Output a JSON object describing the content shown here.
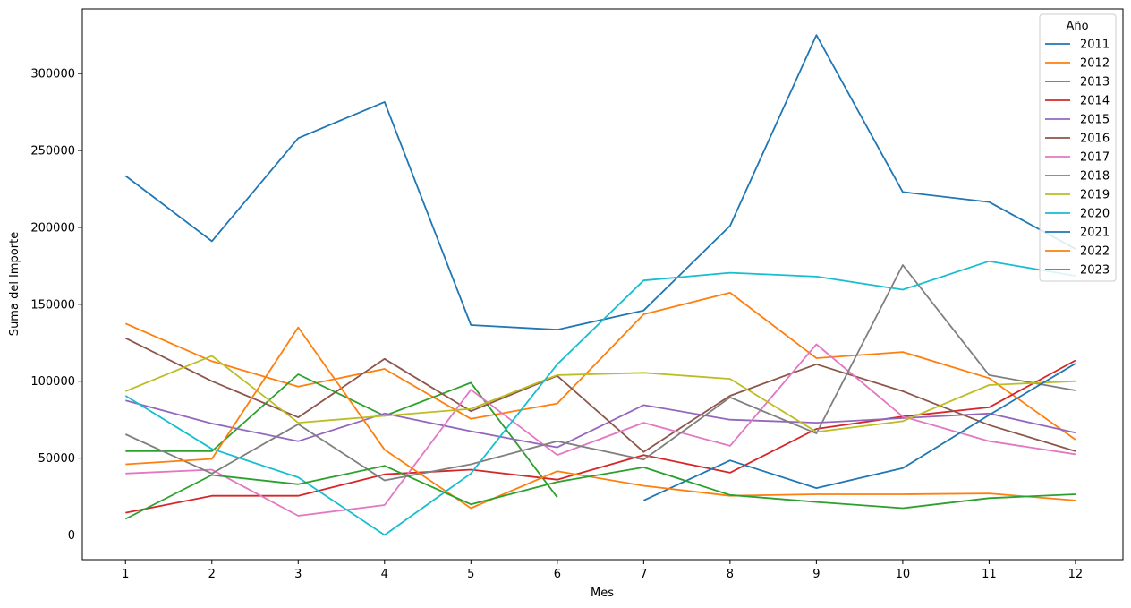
{
  "chart_data": {
    "type": "line",
    "xlabel": "Mes",
    "ylabel": "Suma del Importe",
    "x": [
      1,
      2,
      3,
      4,
      5,
      6,
      7,
      8,
      9,
      10,
      11,
      12
    ],
    "x_ticks": [
      "1",
      "2",
      "3",
      "4",
      "5",
      "6",
      "7",
      "8",
      "9",
      "10",
      "11",
      "12"
    ],
    "y_ticks": [
      0,
      50000,
      100000,
      150000,
      200000,
      250000,
      300000
    ],
    "y_tick_labels": [
      "0",
      "50000",
      "100000",
      "150000",
      "200000",
      "250000",
      "300000"
    ],
    "xlim": [
      0.5,
      12.55
    ],
    "ylim": [
      -16000,
      342000
    ],
    "grid": false,
    "legend": {
      "title": "Año",
      "position": "top-right"
    },
    "series": [
      {
        "name": "2011",
        "color": "#1f77b4",
        "values": [
          233500,
          191000,
          258000,
          281500,
          136500,
          133500,
          146000,
          201000,
          325000,
          223000,
          216500,
          186000
        ]
      },
      {
        "name": "2012",
        "color": "#ff7f0e",
        "values": [
          137500,
          113000,
          96500,
          108000,
          75500,
          85500,
          143500,
          157500,
          115000,
          119000,
          102000,
          62000
        ]
      },
      {
        "name": "2013",
        "color": "#2ca02c",
        "values": [
          54500,
          54500,
          104500,
          77500,
          99000,
          24500,
          null,
          null,
          null,
          null,
          null,
          null
        ]
      },
      {
        "name": "2014",
        "color": "#d62728",
        "values": [
          14500,
          25500,
          25500,
          39500,
          42500,
          36000,
          52000,
          40500,
          69000,
          77000,
          83000,
          113500
        ]
      },
      {
        "name": "2015",
        "color": "#9467bd",
        "values": [
          87500,
          72500,
          61000,
          79000,
          67500,
          57000,
          84500,
          75000,
          73000,
          76000,
          79000,
          66500
        ]
      },
      {
        "name": "2016",
        "color": "#8c564b",
        "values": [
          128000,
          100000,
          76500,
          114500,
          80500,
          103500,
          54000,
          90500,
          111000,
          93500,
          71500,
          54500
        ]
      },
      {
        "name": "2017",
        "color": "#e377c2",
        "values": [
          40000,
          42500,
          12500,
          19500,
          94500,
          52000,
          73000,
          58000,
          124000,
          77000,
          61000,
          52500
        ]
      },
      {
        "name": "2018",
        "color": "#7f7f7f",
        "values": [
          65500,
          40000,
          72000,
          35500,
          46000,
          61000,
          49000,
          89500,
          66000,
          175500,
          104000,
          94000
        ]
      },
      {
        "name": "2019",
        "color": "#bcbd22",
        "values": [
          93500,
          116500,
          73000,
          77500,
          82000,
          104000,
          105500,
          101500,
          67000,
          74000,
          97500,
          100000
        ]
      },
      {
        "name": "2020",
        "color": "#17becf",
        "values": [
          90500,
          56000,
          37500,
          0,
          40000,
          111000,
          165500,
          170500,
          168000,
          159500,
          178000,
          168500
        ]
      },
      {
        "name": "2021",
        "color": "#1f77b4",
        "values": [
          null,
          null,
          null,
          null,
          null,
          null,
          22500,
          48500,
          30500,
          43500,
          78000,
          111500
        ]
      },
      {
        "name": "2022",
        "color": "#ff7f0e",
        "values": [
          46000,
          49500,
          135000,
          55500,
          17500,
          41500,
          32000,
          25500,
          26500,
          26500,
          27000,
          22500
        ]
      },
      {
        "name": "2023",
        "color": "#2ca02c",
        "values": [
          10500,
          39000,
          33000,
          45000,
          20000,
          34500,
          44000,
          26000,
          21500,
          17500,
          24000,
          26500
        ]
      }
    ]
  }
}
